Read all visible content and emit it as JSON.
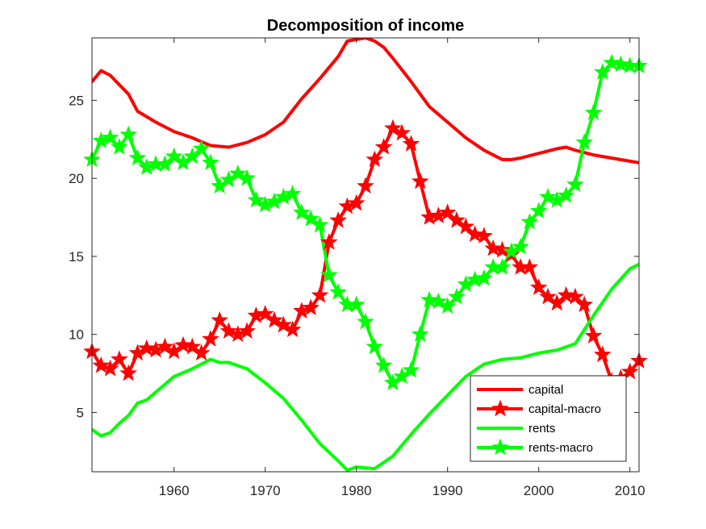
{
  "chart_data": {
    "type": "line",
    "title": "Decomposition of income",
    "xlabel": "",
    "ylabel": "",
    "xlim": [
      1951,
      2011
    ],
    "ylim": [
      1.2,
      29
    ],
    "xticks": [
      "1960",
      "1970",
      "1980",
      "1990",
      "2000",
      "2010"
    ],
    "yticks": [
      "5",
      "10",
      "15",
      "20",
      "25"
    ],
    "grid": false,
    "legend_position": "bottom-right",
    "series": [
      {
        "name": "capital",
        "color": "#ff0000",
        "marker": "none",
        "x": [
          1951,
          1952,
          1953,
          1954,
          1955,
          1956,
          1958,
          1960,
          1962,
          1964,
          1966,
          1968,
          1970,
          1972,
          1974,
          1976,
          1978,
          1979,
          1980,
          1981,
          1982,
          1983,
          1984,
          1986,
          1988,
          1990,
          1992,
          1994,
          1996,
          1997,
          1998,
          2000,
          2002,
          2003,
          2004,
          2006,
          2008,
          2010,
          2011
        ],
        "y": [
          26.2,
          26.9,
          26.6,
          26.0,
          25.4,
          24.3,
          23.6,
          23.0,
          22.6,
          22.1,
          22.0,
          22.3,
          22.8,
          23.6,
          25.1,
          26.4,
          27.8,
          28.8,
          28.9,
          29.0,
          28.8,
          28.4,
          27.7,
          26.2,
          24.6,
          23.6,
          22.6,
          21.8,
          21.2,
          21.2,
          21.3,
          21.6,
          21.9,
          22.0,
          21.8,
          21.5,
          21.3,
          21.1,
          21.0
        ]
      },
      {
        "name": "capital-macro",
        "color": "#ff0000",
        "marker": "star",
        "x": [
          1951,
          1952,
          1953,
          1954,
          1955,
          1956,
          1957,
          1958,
          1959,
          1960,
          1961,
          1962,
          1963,
          1964,
          1965,
          1966,
          1967,
          1968,
          1969,
          1970,
          1971,
          1972,
          1973,
          1974,
          1975,
          1976,
          1977,
          1978,
          1979,
          1980,
          1981,
          1982,
          1983,
          1984,
          1985,
          1986,
          1987,
          1988,
          1989,
          1990,
          1991,
          1992,
          1993,
          1994,
          1995,
          1996,
          1997,
          1998,
          1999,
          2000,
          2001,
          2002,
          2003,
          2004,
          2005,
          2006,
          2007,
          2008,
          2009,
          2010,
          2011
        ],
        "y": [
          8.9,
          8.0,
          7.8,
          8.4,
          7.5,
          8.8,
          9.1,
          9.0,
          9.2,
          8.9,
          9.3,
          9.2,
          8.8,
          9.7,
          10.9,
          10.2,
          10.0,
          10.2,
          11.2,
          11.3,
          10.9,
          10.6,
          10.3,
          11.5,
          11.7,
          12.5,
          15.9,
          17.3,
          18.2,
          18.4,
          19.5,
          21.2,
          22.0,
          23.2,
          22.9,
          22.2,
          19.8,
          17.5,
          17.6,
          17.8,
          17.3,
          16.9,
          16.4,
          16.3,
          15.5,
          15.4,
          15.1,
          14.3,
          14.3,
          13.0,
          12.4,
          12.0,
          12.5,
          12.4,
          11.9,
          9.9,
          8.7,
          7.0,
          7.2,
          7.6,
          8.3
        ]
      },
      {
        "name": "rents",
        "color": "#00ff00",
        "marker": "none",
        "x": [
          1951,
          1952,
          1953,
          1954,
          1955,
          1956,
          1957,
          1958,
          1959,
          1960,
          1962,
          1964,
          1965,
          1966,
          1968,
          1970,
          1972,
          1974,
          1976,
          1978,
          1979,
          1980,
          1982,
          1984,
          1986,
          1988,
          1990,
          1992,
          1994,
          1996,
          1998,
          2000,
          2002,
          2004,
          2006,
          2008,
          2010,
          2011
        ],
        "y": [
          3.9,
          3.5,
          3.7,
          4.3,
          4.8,
          5.6,
          5.8,
          6.3,
          6.8,
          7.3,
          7.8,
          8.4,
          8.2,
          8.2,
          7.8,
          6.9,
          5.9,
          4.5,
          3.0,
          1.9,
          1.3,
          1.5,
          1.4,
          2.2,
          3.6,
          4.9,
          6.1,
          7.3,
          8.1,
          8.4,
          8.5,
          8.8,
          9.0,
          9.4,
          11.2,
          12.9,
          14.2,
          14.5
        ]
      },
      {
        "name": "rents-macro",
        "color": "#00ff00",
        "marker": "star",
        "x": [
          1951,
          1952,
          1953,
          1954,
          1955,
          1956,
          1957,
          1958,
          1959,
          1960,
          1961,
          1962,
          1963,
          1964,
          1965,
          1966,
          1967,
          1968,
          1969,
          1970,
          1971,
          1972,
          1973,
          1974,
          1975,
          1976,
          1977,
          1978,
          1979,
          1980,
          1981,
          1982,
          1983,
          1984,
          1985,
          1986,
          1987,
          1988,
          1989,
          1990,
          1991,
          1992,
          1993,
          1994,
          1995,
          1996,
          1997,
          1998,
          1999,
          2000,
          2001,
          2002,
          2003,
          2004,
          2005,
          2006,
          2007,
          2008,
          2009,
          2010,
          2011
        ],
        "y": [
          21.2,
          22.4,
          22.6,
          22.0,
          22.8,
          21.3,
          20.7,
          20.9,
          20.9,
          21.4,
          21.0,
          21.4,
          21.9,
          21.0,
          19.5,
          19.9,
          20.3,
          20.0,
          18.6,
          18.3,
          18.5,
          18.8,
          19.0,
          17.8,
          17.4,
          17.0,
          13.8,
          12.7,
          11.9,
          11.9,
          10.8,
          9.2,
          8.0,
          6.9,
          7.3,
          7.7,
          10.0,
          12.2,
          12.1,
          11.8,
          12.4,
          13.2,
          13.5,
          13.6,
          14.3,
          14.3,
          15.3,
          15.6,
          17.2,
          17.9,
          18.8,
          18.6,
          18.9,
          19.6,
          22.3,
          24.2,
          26.8,
          27.4,
          27.3,
          27.2,
          27.2
        ]
      }
    ]
  }
}
